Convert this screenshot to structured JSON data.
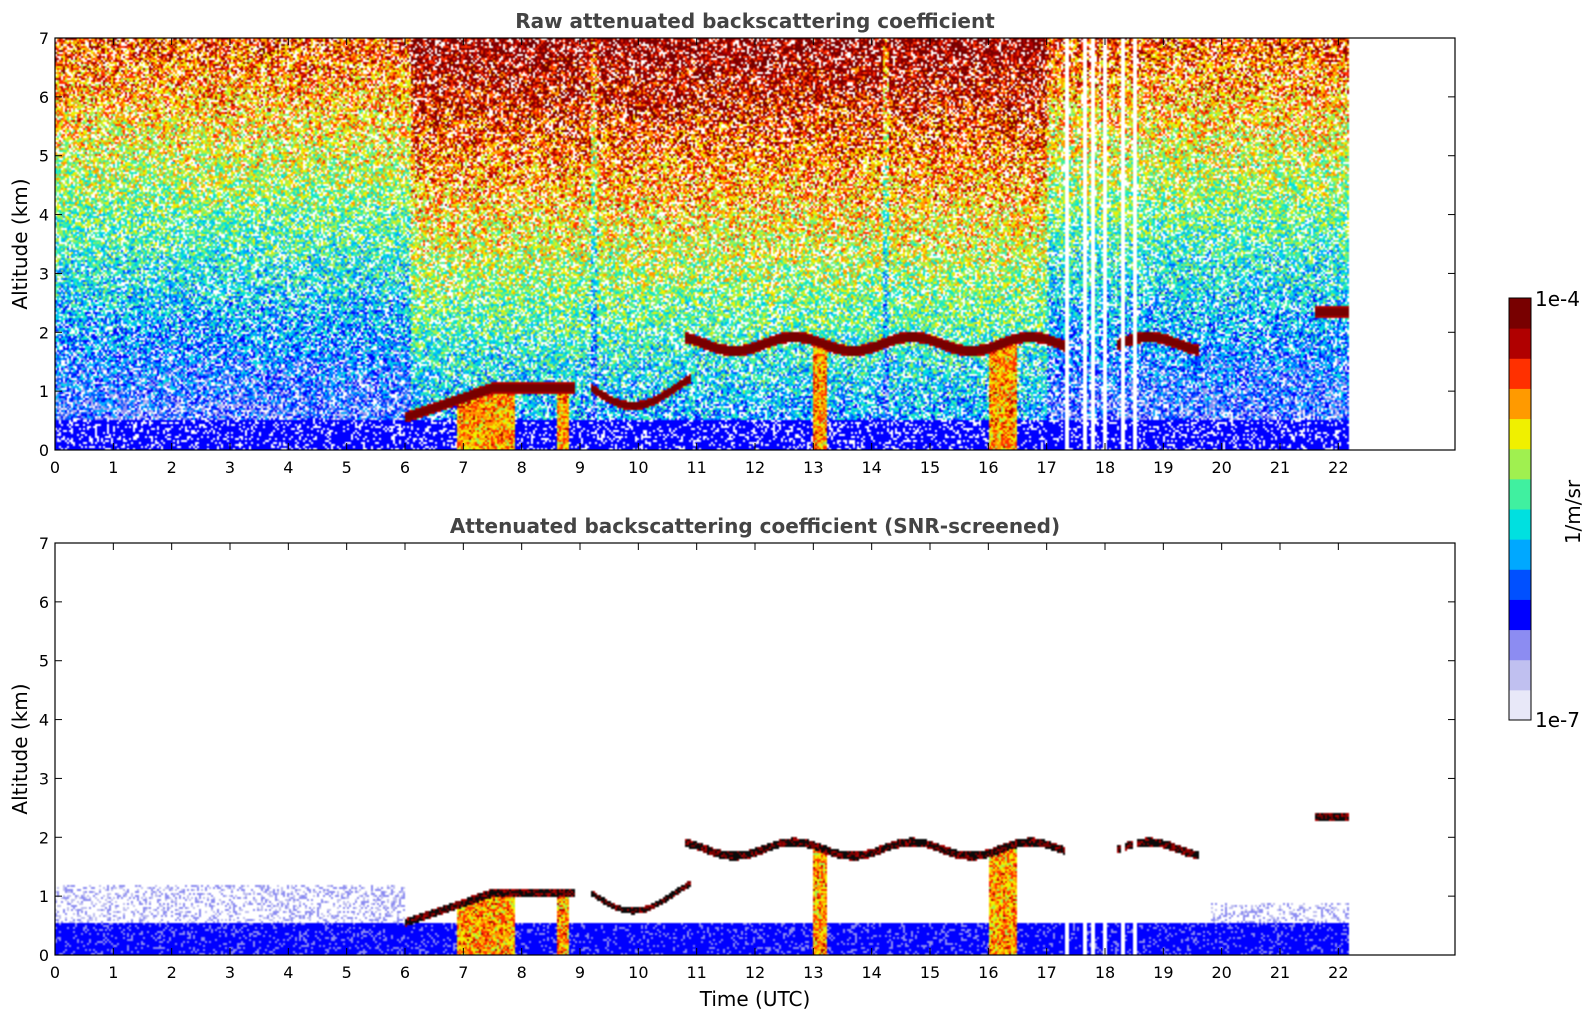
{
  "chart_data": [
    {
      "type": "heatmap",
      "title": "Raw attenuated backscattering coefficient",
      "xlabel": "",
      "ylabel": "Altitude (km)",
      "xlim": [
        0,
        24
      ],
      "ylim": [
        0,
        7
      ],
      "x_ticks": [
        "0",
        "1",
        "2",
        "3",
        "4",
        "5",
        "6",
        "7",
        "8",
        "9",
        "10",
        "11",
        "12",
        "13",
        "14",
        "15",
        "16",
        "17",
        "18",
        "19",
        "20",
        "21",
        "22"
      ],
      "y_ticks": [
        "0",
        "1",
        "2",
        "3",
        "4",
        "5",
        "6",
        "7"
      ],
      "data_end_hour": 22.2,
      "noise_enhanced_intervals_hours": [
        [
          6.1,
          9.2
        ],
        [
          9.3,
          14.2
        ],
        [
          14.3,
          17.0
        ]
      ],
      "missing_profile_hours": [
        17.35,
        17.65,
        17.8,
        18.0,
        18.3,
        18.5
      ],
      "features": [
        {
          "name": "surface aerosol layer",
          "x": [
            0,
            22.2
          ],
          "y": [
            0,
            0.5
          ]
        },
        {
          "name": "boundary layer cloud",
          "x": [
            6.0,
            8.9
          ],
          "y": [
            0.4,
            1.1
          ]
        },
        {
          "name": "boundary layer cloud",
          "x": [
            9.2,
            10.9
          ],
          "y": [
            0.5,
            1.2
          ]
        },
        {
          "name": "cloud layer",
          "x": [
            10.8,
            19.6
          ],
          "y": [
            1.4,
            2.0
          ]
        },
        {
          "name": "elevated layer",
          "x": [
            21.6,
            22.2
          ],
          "y": [
            2.2,
            2.45
          ]
        }
      ]
    },
    {
      "type": "heatmap",
      "title": "Attenuated backscattering coefficient (SNR-screened)",
      "xlabel": "Time (UTC)",
      "ylabel": "Altitude (km)",
      "xlim": [
        0,
        24
      ],
      "ylim": [
        0,
        7
      ],
      "x_ticks": [
        "0",
        "1",
        "2",
        "3",
        "4",
        "5",
        "6",
        "7",
        "8",
        "9",
        "10",
        "11",
        "12",
        "13",
        "14",
        "15",
        "16",
        "17",
        "18",
        "19",
        "20",
        "21",
        "22"
      ],
      "y_ticks": [
        "0",
        "1",
        "2",
        "3",
        "4",
        "5",
        "6",
        "7"
      ],
      "data_end_hour": 22.2
    }
  ],
  "colorbar": {
    "label": "1/m/sr",
    "max_label": "1e-4",
    "min_label": "1e-7",
    "range": [
      1e-07,
      0.0001
    ],
    "scale": "log",
    "colors": [
      "#e8e8f8",
      "#c0c0f0",
      "#8c8cf2",
      "#0000ff",
      "#0050ff",
      "#00a8ff",
      "#00e0e0",
      "#40f0a0",
      "#a0f050",
      "#f0f000",
      "#ff9a00",
      "#ff3000",
      "#b00000",
      "#780000"
    ]
  }
}
